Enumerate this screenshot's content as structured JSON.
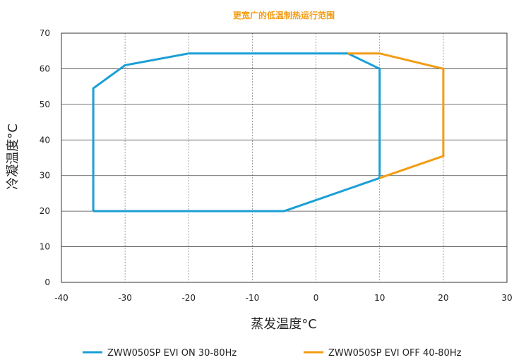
{
  "chart_data": {
    "type": "line",
    "title": "更宽广的低温制热运行范围",
    "xlabel": "蒸发温度°C",
    "ylabel": "冷凝温度°C",
    "xlim": [
      -40,
      30
    ],
    "ylim": [
      0,
      70
    ],
    "xticks": [
      -40,
      -30,
      -20,
      -10,
      0,
      10,
      20,
      30
    ],
    "yticks": [
      0,
      10,
      20,
      30,
      40,
      50,
      60,
      70
    ],
    "grid": true,
    "legend_position": "bottom",
    "series": [
      {
        "name": "ZWW050SP EVI ON 30-80Hz",
        "color": "#1a9fd6",
        "points": [
          [
            -35,
            20
          ],
          [
            -35,
            54.5
          ],
          [
            -30,
            61
          ],
          [
            -20,
            64.3
          ],
          [
            5,
            64.3
          ],
          [
            10,
            60
          ],
          [
            10,
            29.3
          ],
          [
            -5,
            20
          ],
          [
            -35,
            20
          ]
        ]
      },
      {
        "name": "ZWW050SP EVI OFF 40-80Hz",
        "color": "#f39c12",
        "points": [
          [
            5,
            64.3
          ],
          [
            10,
            64.3
          ],
          [
            20,
            60
          ],
          [
            20,
            35.5
          ],
          [
            10,
            29.3
          ]
        ]
      }
    ]
  }
}
